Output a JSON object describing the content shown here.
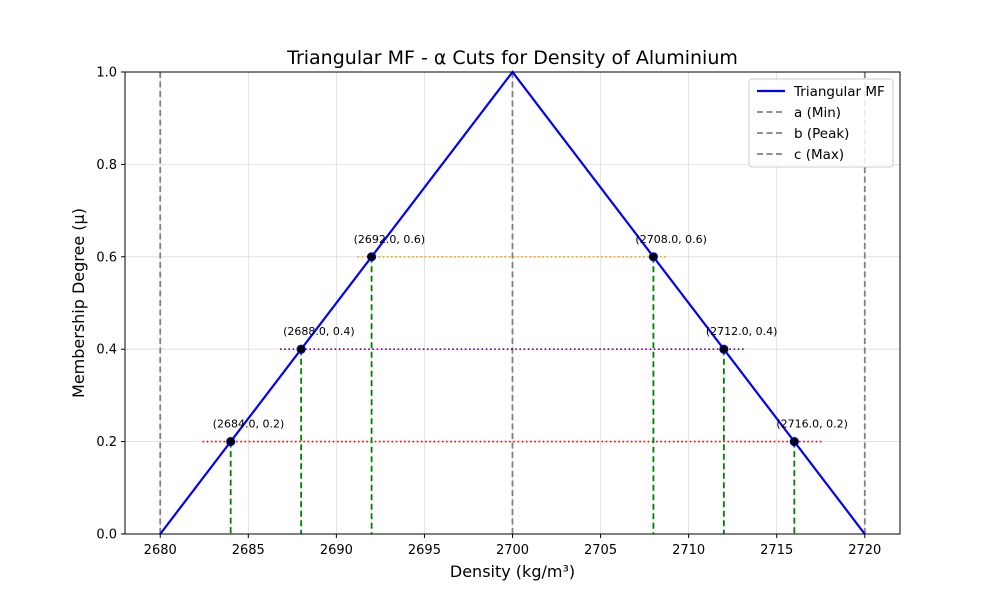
{
  "chart_data": {
    "type": "line",
    "title": "Triangular MF - α Cuts for Density of Aluminium",
    "xlabel": "Density (kg/m³)",
    "ylabel": "Membership Degree (μ)",
    "xlim": [
      2678,
      2722
    ],
    "ylim": [
      0,
      1.0
    ],
    "xticks": [
      2680,
      2685,
      2690,
      2695,
      2700,
      2705,
      2710,
      2715,
      2720
    ],
    "yticks": [
      0.0,
      0.2,
      0.4,
      0.6,
      0.8,
      1.0
    ],
    "xtick_labels": [
      "2680",
      "2685",
      "2690",
      "2695",
      "2700",
      "2705",
      "2710",
      "2715",
      "2720"
    ],
    "ytick_labels": [
      "0.0",
      "0.2",
      "0.4",
      "0.6",
      "0.8",
      "1.0"
    ],
    "grid": true,
    "legend_position": "top-right",
    "series": [
      {
        "name": "Triangular MF",
        "x": [
          2680,
          2700,
          2720
        ],
        "y": [
          0,
          1,
          0
        ],
        "color": "#0000ff",
        "style": "solid"
      }
    ],
    "reference_lines": [
      {
        "name": "a (Min)",
        "x": 2680,
        "color": "#808080",
        "style": "dashed"
      },
      {
        "name": "b (Peak)",
        "x": 2700,
        "color": "#808080",
        "style": "dashed"
      },
      {
        "name": "c (Max)",
        "x": 2720,
        "color": "#808080",
        "style": "dashed"
      }
    ],
    "alpha_cuts": [
      {
        "alpha": 0.2,
        "left": 2684,
        "right": 2716,
        "color": "#ff0000",
        "span": [
          2682.4,
          2717.6
        ],
        "left_label": "(2684.0, 0.2)",
        "right_label": "(2716.0, 0.2)"
      },
      {
        "alpha": 0.4,
        "left": 2688,
        "right": 2712,
        "color": "#800080",
        "span": [
          2686.8,
          2713.2
        ],
        "left_label": "(2688.0, 0.4)",
        "right_label": "(2712.0, 0.4)"
      },
      {
        "alpha": 0.6,
        "left": 2692,
        "right": 2708,
        "color": "#ffa500",
        "span": [
          2691.2,
          2708.8
        ],
        "left_label": "(2692.0, 0.6)",
        "right_label": "(2708.0, 0.6)"
      }
    ],
    "drop_line_color": "#008000",
    "marker_color": "#000000"
  }
}
